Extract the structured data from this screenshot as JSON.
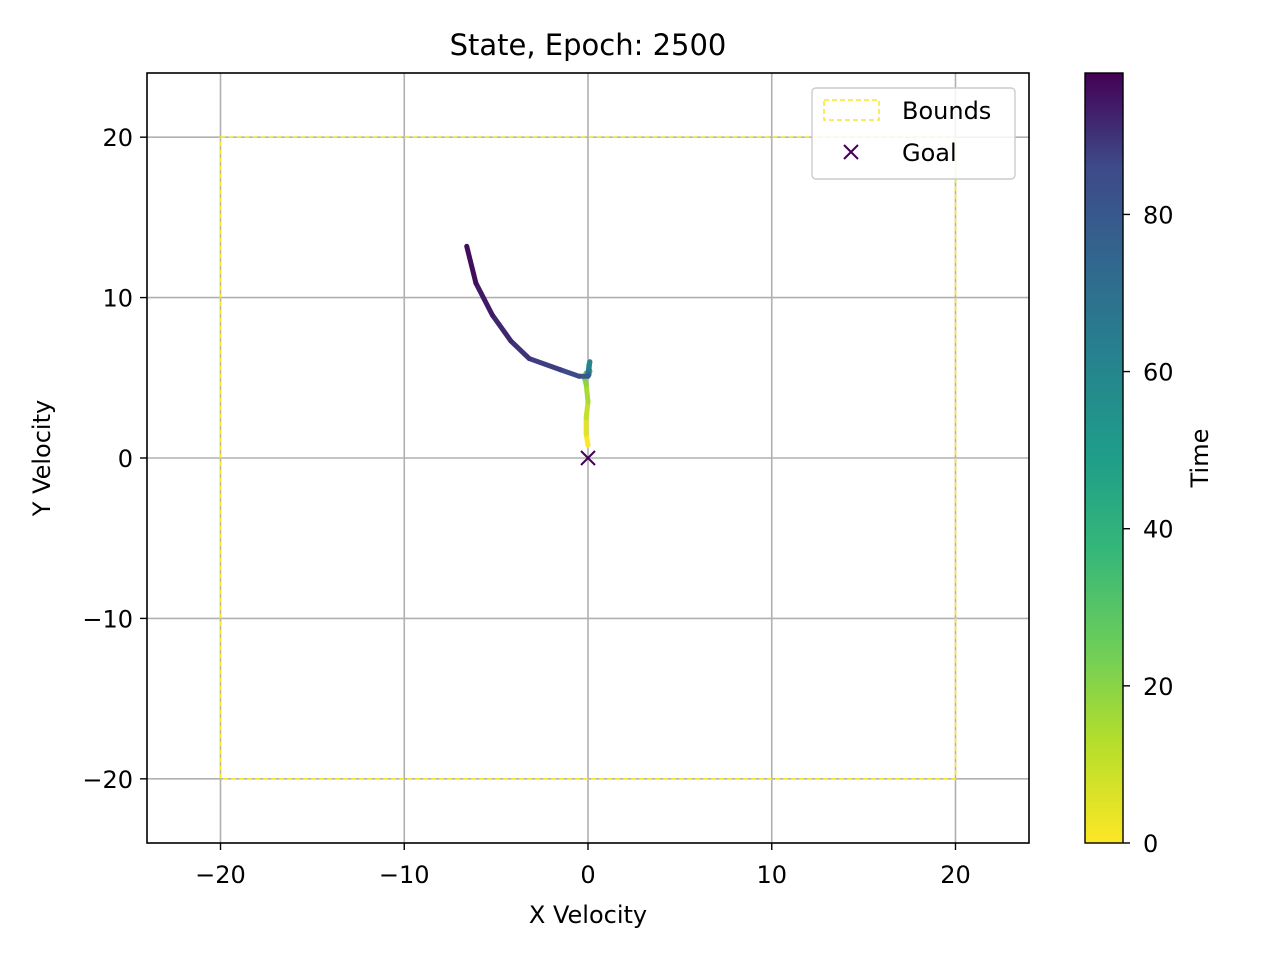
{
  "chart_data": {
    "type": "line",
    "title": "State, Epoch: 2500",
    "xlabel": "X Velocity",
    "ylabel": "Y Velocity",
    "xlim": [
      -24,
      24
    ],
    "ylim": [
      -24,
      24
    ],
    "xticks": [
      -20,
      -10,
      0,
      10,
      20
    ],
    "yticks": [
      -20,
      -10,
      0,
      10,
      20
    ],
    "xtick_labels": [
      "−20",
      "−10",
      "0",
      "10",
      "20"
    ],
    "ytick_labels": [
      "−20",
      "−10",
      "0",
      "10",
      "20"
    ],
    "grid": true,
    "legend": {
      "placement": "top-right",
      "entries": [
        {
          "label": "Bounds",
          "style": "dashed-rect",
          "color": "#fde725"
        },
        {
          "label": "Goal",
          "style": "x-marker",
          "color": "#440154"
        }
      ]
    },
    "bounds": {
      "xmin": -20,
      "xmax": 20,
      "ymin": -20,
      "ymax": 20,
      "color": "#fde725"
    },
    "goal": {
      "x": 0,
      "y": 0,
      "color": "#440154"
    },
    "colorbar": {
      "label": "Time",
      "min": 0,
      "max": 98,
      "ticks": [
        0,
        20,
        40,
        60,
        80
      ],
      "colormap": "viridis"
    },
    "trajectory": {
      "t": [
        0,
        5,
        10,
        15,
        20,
        25,
        30,
        35,
        40,
        45,
        50,
        55,
        60,
        65,
        70,
        75,
        80,
        85,
        88,
        90,
        92,
        94,
        96,
        98
      ],
      "x": [
        0.0,
        -0.1,
        -0.1,
        0.0,
        -0.1,
        -0.2,
        -0.1,
        0.0,
        0.1,
        0.05,
        0.0,
        0.05,
        0.1,
        0.05,
        0.0,
        0.05,
        0.0,
        -0.5,
        -1.5,
        -3.2,
        -4.2,
        -5.2,
        -6.1,
        -6.6
      ],
      "y": [
        0.8,
        1.5,
        2.5,
        3.5,
        4.6,
        5.0,
        5.3,
        5.1,
        5.4,
        5.6,
        5.2,
        5.8,
        6.0,
        5.5,
        5.3,
        5.2,
        5.1,
        5.1,
        5.5,
        6.2,
        7.3,
        8.9,
        10.9,
        13.2
      ]
    }
  }
}
